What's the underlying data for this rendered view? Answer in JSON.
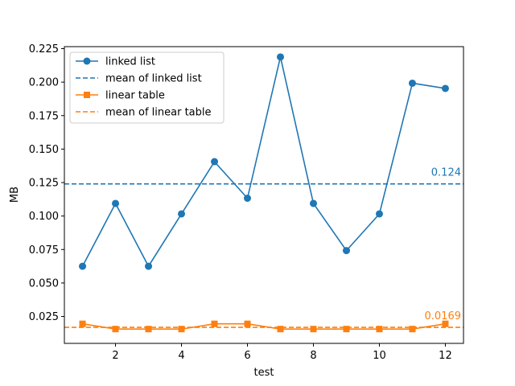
{
  "chart_data": {
    "type": "line",
    "xlabel": "test",
    "ylabel": "MB",
    "xlim": [
      0.45,
      12.55
    ],
    "ylim": [
      0.0049,
      0.2265
    ],
    "xticks": [
      2,
      4,
      6,
      8,
      10,
      12
    ],
    "xtick_labels": [
      "2",
      "4",
      "6",
      "8",
      "10",
      "12"
    ],
    "yticks": [
      0.025,
      0.05,
      0.075,
      0.1,
      0.125,
      0.15,
      0.175,
      0.2,
      0.225
    ],
    "ytick_labels": [
      "0.025",
      "0.050",
      "0.075",
      "0.100",
      "0.125",
      "0.150",
      "0.175",
      "0.200",
      "0.225"
    ],
    "grid": false,
    "legend_position": "upper-left",
    "x": [
      1,
      2,
      3,
      4,
      5,
      6,
      7,
      8,
      9,
      10,
      11,
      12
    ],
    "series": [
      {
        "name": "linked list",
        "color": "#1f77b4",
        "marker": "circle",
        "values": [
          0.0625,
          0.1094,
          0.0625,
          0.1016,
          0.1406,
          0.1133,
          0.2188,
          0.1094,
          0.0742,
          0.1016,
          0.1992,
          0.1953
        ]
      },
      {
        "name": "linear table",
        "color": "#ff7f0e",
        "marker": "square",
        "values": [
          0.0195,
          0.0156,
          0.0156,
          0.0156,
          0.0195,
          0.0195,
          0.0156,
          0.0156,
          0.0156,
          0.0156,
          0.0156,
          0.0195
        ]
      }
    ],
    "mean_lines": [
      {
        "name": "mean of linked list",
        "value": 0.124,
        "label": "0.124",
        "color": "#1f77b4"
      },
      {
        "name": "mean of linear table",
        "value": 0.0169,
        "label": "0.0169",
        "color": "#ff7f0e"
      }
    ],
    "legend": [
      {
        "label": "linked list",
        "style": "line-marker",
        "marker": "circle",
        "color": "#1f77b4"
      },
      {
        "label": "mean of linked list",
        "style": "dashed",
        "color": "#1f77b4"
      },
      {
        "label": "linear table",
        "style": "line-marker",
        "marker": "square",
        "color": "#ff7f0e"
      },
      {
        "label": "mean of linear table",
        "style": "dashed",
        "color": "#ff7f0e"
      }
    ]
  }
}
